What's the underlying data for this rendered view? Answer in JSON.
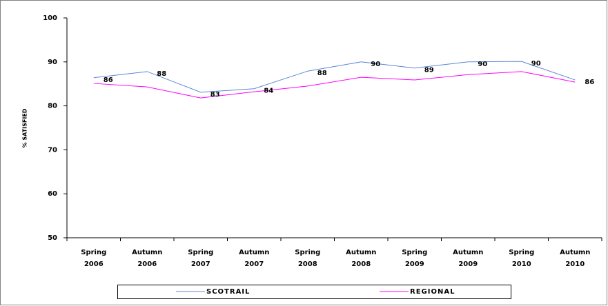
{
  "chart_data": {
    "type": "line",
    "y_axis_label": "% SATISFIED",
    "categories": [
      [
        "Spring",
        "2006"
      ],
      [
        "Autumn",
        "2006"
      ],
      [
        "Spring",
        "2007"
      ],
      [
        "Autumn",
        "2007"
      ],
      [
        "Spring",
        "2008"
      ],
      [
        "Autumn",
        "2008"
      ],
      [
        "Spring",
        "2009"
      ],
      [
        "Autumn",
        "2009"
      ],
      [
        "Spring",
        "2010"
      ],
      [
        "Autumn",
        "2010"
      ]
    ],
    "series": [
      {
        "name": "SCOTRAIL",
        "color": "#5b84d6",
        "values": [
          86.4,
          87.8,
          83.1,
          83.9,
          87.9,
          90.0,
          88.6,
          90.0,
          90.1,
          85.9
        ],
        "value_labels": [
          "86",
          "88",
          "83",
          "84",
          "88",
          "90",
          "89",
          "90",
          "90",
          "86"
        ]
      },
      {
        "name": "REGIONAL",
        "color": "#ff00ff",
        "values": [
          85.1,
          84.3,
          81.8,
          83.2,
          84.5,
          86.5,
          85.9,
          87.1,
          87.8,
          85.4
        ]
      }
    ],
    "ylim": [
      50,
      100
    ],
    "yticks": [
      50,
      60,
      70,
      80,
      90,
      100
    ],
    "grid": false,
    "legend": "bottom"
  }
}
